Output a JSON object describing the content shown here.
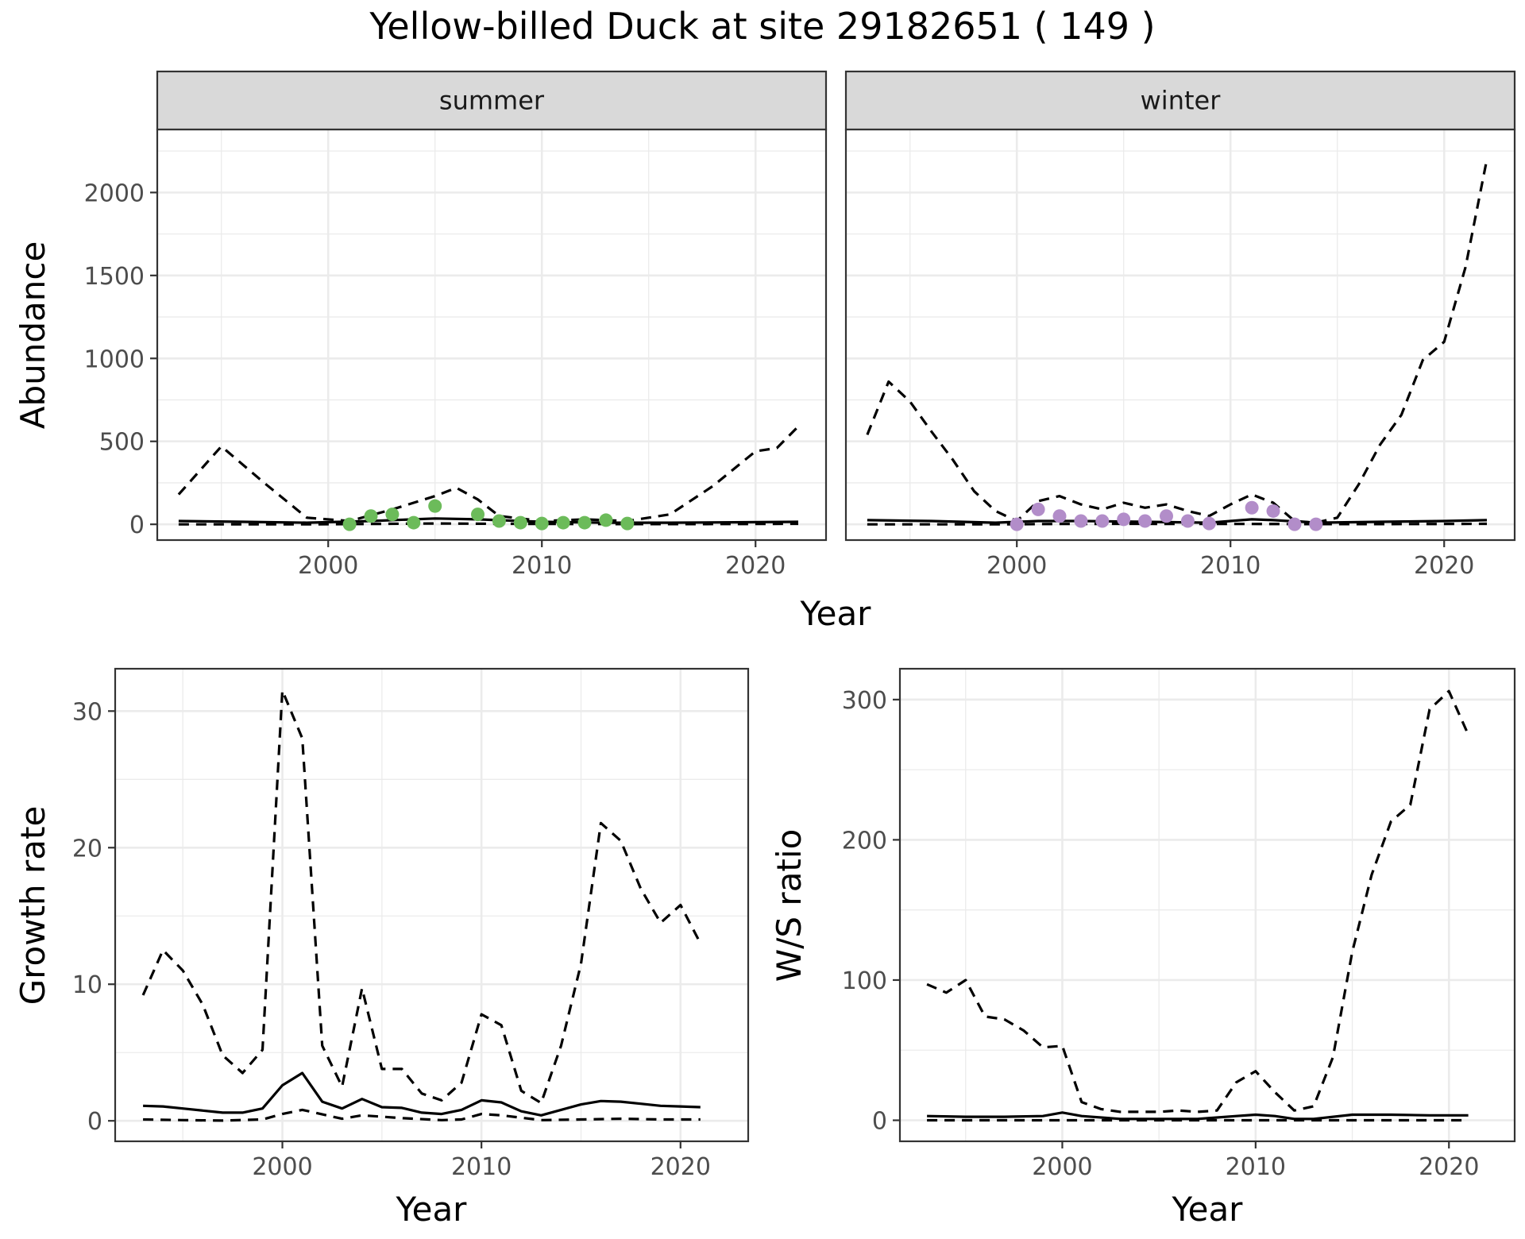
{
  "title": "Yellow-billed Duck at site 29182651 ( 149 )",
  "colors": {
    "summer_points": "#6cbb5a",
    "winter_points": "#b28dc9",
    "line": "#000000",
    "strip_fill": "#d9d9d9",
    "grid": "#ebebeb"
  },
  "chart_data": [
    {
      "id": "abundance",
      "type": "line",
      "ylabel": "Abundance",
      "xlabel": "Year",
      "xlim": [
        1992,
        2023.3
      ],
      "ylim": [
        -95,
        2380
      ],
      "xticks": [
        2000,
        2010,
        2020
      ],
      "yticks": [
        0,
        500,
        1000,
        1500,
        2000
      ],
      "grid": true,
      "legend": "none",
      "facets": [
        {
          "label": "summer",
          "point_color": "#6cbb5a",
          "points": {
            "x": [
              2001,
              2002,
              2003,
              2004,
              2005,
              2007,
              2008,
              2009,
              2010,
              2011,
              2012,
              2013,
              2014
            ],
            "y": [
              0,
              50,
              60,
              10,
              110,
              60,
              20,
              10,
              5,
              10,
              10,
              25,
              5
            ]
          },
          "series": [
            {
              "style": "dashed",
              "x": [
                1993,
                1995,
                1997,
                1999,
                2001,
                2003,
                2005,
                2006,
                2007,
                2008,
                2010,
                2012,
                2014,
                2016,
                2018,
                2020,
                2021,
                2022
              ],
              "y": [
                180,
                470,
                250,
                40,
                20,
                90,
                170,
                220,
                150,
                50,
                20,
                30,
                20,
                60,
                230,
                440,
                460,
                590
              ]
            },
            {
              "style": "solid",
              "x": [
                1993,
                1996,
                1999,
                2002,
                2005,
                2007,
                2010,
                2013,
                2016,
                2019,
                2022
              ],
              "y": [
                20,
                15,
                10,
                20,
                35,
                30,
                15,
                10,
                10,
                12,
                15
              ]
            },
            {
              "style": "dashed",
              "x": [
                1993,
                1996,
                1999,
                2002,
                2005,
                2008,
                2011,
                2014,
                2017,
                2020,
                2022
              ],
              "y": [
                0,
                0,
                0,
                2,
                5,
                3,
                2,
                1,
                1,
                2,
                3
              ]
            }
          ]
        },
        {
          "label": "winter",
          "point_color": "#b28dc9",
          "points": {
            "x": [
              2000,
              2001,
              2002,
              2003,
              2004,
              2005,
              2006,
              2007,
              2008,
              2009,
              2011,
              2012,
              2013,
              2014
            ],
            "y": [
              0,
              90,
              50,
              20,
              20,
              30,
              20,
              50,
              20,
              5,
              100,
              80,
              0,
              0
            ]
          },
          "series": [
            {
              "style": "dashed",
              "x": [
                1993,
                1994,
                1995,
                1996,
                1997,
                1998,
                1999,
                2000,
                2001,
                2002,
                2003,
                2004,
                2005,
                2006,
                2007,
                2008,
                2009,
                2010,
                2011,
                2012,
                2013,
                2014,
                2015,
                2016,
                2017,
                2018,
                2019,
                2020,
                2021,
                2022
              ],
              "y": [
                540,
                860,
                740,
                560,
                390,
                200,
                80,
                20,
                140,
                170,
                120,
                90,
                130,
                100,
                120,
                80,
                50,
                120,
                180,
                130,
                20,
                10,
                40,
                240,
                480,
                660,
                990,
                1100,
                1550,
                2200
              ]
            },
            {
              "style": "solid",
              "x": [
                1993,
                1996,
                1999,
                2001,
                2003,
                2006,
                2009,
                2011,
                2012,
                2014,
                2017,
                2020,
                2022
              ],
              "y": [
                25,
                20,
                10,
                20,
                20,
                15,
                10,
                30,
                25,
                10,
                15,
                20,
                25
              ]
            },
            {
              "style": "dashed",
              "x": [
                1993,
                1996,
                1999,
                2002,
                2005,
                2008,
                2011,
                2014,
                2017,
                2020,
                2022
              ],
              "y": [
                0,
                0,
                0,
                2,
                3,
                2,
                2,
                1,
                1,
                2,
                3
              ]
            }
          ]
        }
      ]
    },
    {
      "id": "growth",
      "type": "line",
      "ylabel": "Growth rate",
      "xlabel": "Year",
      "xlim": [
        1991.6,
        2023.4
      ],
      "ylim": [
        -1.5,
        33.1
      ],
      "xticks": [
        2000,
        2010,
        2020
      ],
      "yticks": [
        0,
        10,
        20,
        30
      ],
      "grid": true,
      "legend": "none",
      "series": [
        {
          "style": "dashed",
          "x": [
            1993,
            1994,
            1995,
            1996,
            1997,
            1998,
            1999,
            2000,
            2001,
            2002,
            2003,
            2004,
            2005,
            2006,
            2007,
            2008,
            2009,
            2010,
            2011,
            2012,
            2013,
            2014,
            2015,
            2016,
            2017,
            2018,
            2019,
            2020,
            2021
          ],
          "y": [
            9.2,
            12.5,
            11,
            8.5,
            4.8,
            3.5,
            5.2,
            31.5,
            28,
            5.5,
            2.5,
            9.7,
            3.8,
            3.8,
            2,
            1.5,
            2.8,
            7.8,
            7,
            2.2,
            1.3,
            5.5,
            11.5,
            21.8,
            20.5,
            17,
            14.5,
            15.8,
            13
          ]
        },
        {
          "style": "solid",
          "x": [
            1993,
            1994,
            1995,
            1996,
            1997,
            1998,
            1999,
            2000,
            2001,
            2002,
            2003,
            2004,
            2005,
            2006,
            2007,
            2008,
            2009,
            2010,
            2011,
            2012,
            2013,
            2014,
            2015,
            2016,
            2017,
            2018,
            2019,
            2020,
            2021
          ],
          "y": [
            1.1,
            1.05,
            0.9,
            0.75,
            0.6,
            0.6,
            0.9,
            2.6,
            3.5,
            1.4,
            0.9,
            1.6,
            1,
            0.95,
            0.6,
            0.5,
            0.8,
            1.5,
            1.35,
            0.7,
            0.4,
            0.8,
            1.2,
            1.45,
            1.4,
            1.25,
            1.1,
            1.05,
            1
          ]
        },
        {
          "style": "dashed",
          "x": [
            1993,
            1995,
            1997,
            1999,
            2000,
            2001,
            2003,
            2004,
            2006,
            2008,
            2009,
            2010,
            2011,
            2013,
            2015,
            2017,
            2019,
            2021
          ],
          "y": [
            0.1,
            0.05,
            0.02,
            0.1,
            0.5,
            0.8,
            0.15,
            0.4,
            0.2,
            0.05,
            0.1,
            0.5,
            0.4,
            0.05,
            0.1,
            0.15,
            0.1,
            0.1
          ]
        }
      ]
    },
    {
      "id": "ws_ratio",
      "type": "line",
      "ylabel": "W/S ratio",
      "xlabel": "Year",
      "xlim": [
        1991.6,
        2023.4
      ],
      "ylim": [
        -15,
        322
      ],
      "xticks": [
        2000,
        2010,
        2020
      ],
      "yticks": [
        0,
        100,
        200,
        300
      ],
      "grid": true,
      "legend": "none",
      "series": [
        {
          "style": "dashed",
          "x": [
            1993,
            1994,
            1995,
            1996,
            1997,
            1998,
            1999,
            2000,
            2001,
            2002,
            2003,
            2004,
            2005,
            2006,
            2007,
            2008,
            2009,
            2010,
            2011,
            2012,
            2013,
            2014,
            2015,
            2016,
            2017,
            2018,
            2019,
            2020,
            2021
          ],
          "y": [
            97,
            91,
            100,
            74,
            72,
            64,
            52,
            53,
            13,
            8,
            6,
            6,
            6,
            7,
            6,
            7,
            27,
            35,
            20,
            7,
            10,
            45,
            120,
            175,
            213,
            225,
            293,
            306,
            275
          ]
        },
        {
          "style": "solid",
          "x": [
            1993,
            1995,
            1997,
            1999,
            2000,
            2001,
            2003,
            2005,
            2007,
            2009,
            2010,
            2011,
            2012,
            2013,
            2015,
            2017,
            2019,
            2021
          ],
          "y": [
            3,
            2.5,
            2.5,
            3,
            5.5,
            3,
            1,
            1,
            1,
            3,
            4,
            3,
            1,
            1,
            4,
            4,
            3.5,
            3.5
          ]
        },
        {
          "style": "dashed",
          "x": [
            1993,
            1996,
            1999,
            2002,
            2005,
            2008,
            2011,
            2014,
            2017,
            2020,
            2021
          ],
          "y": [
            0,
            0,
            0,
            0,
            0,
            0,
            0,
            0,
            0,
            0,
            0
          ]
        }
      ]
    }
  ]
}
